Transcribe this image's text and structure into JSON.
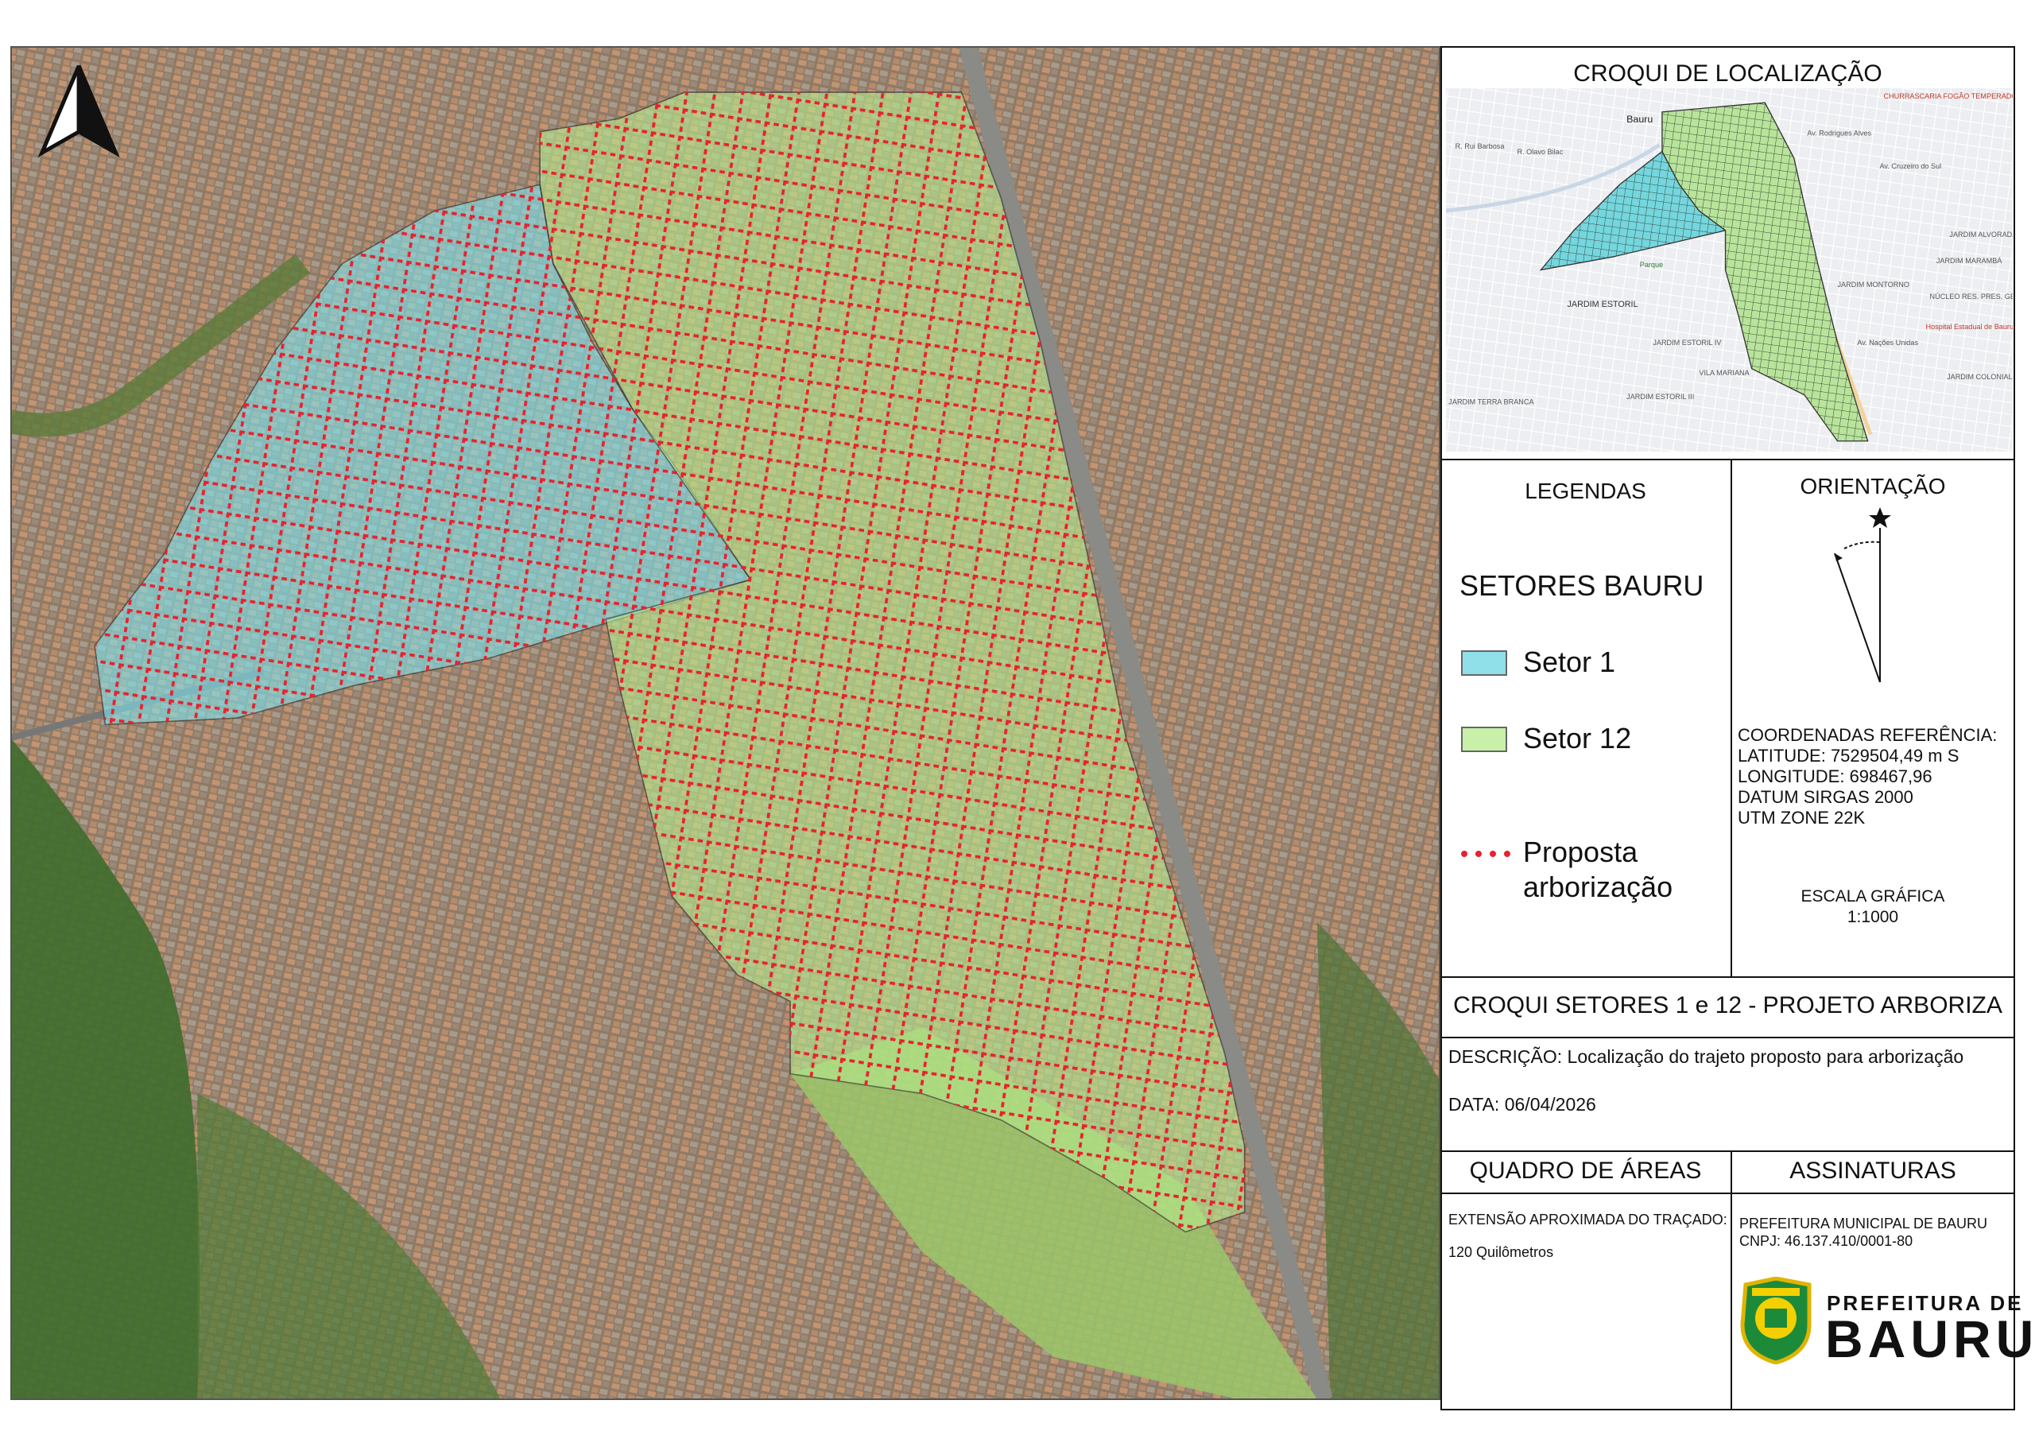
{
  "inset": {
    "title": "CROQUI DE LOCALIZAÇÃO",
    "labels": [
      "Bauru",
      "R. Rui Barbosa",
      "R. Olavo Bilac",
      "Av. Rodrigues Alves",
      "Av. Cruzeiro do Sul",
      "CHURRASCARIA FOGÃO TEMPERADO",
      "Parque",
      "JARDIM ESTORIL",
      "JARDIM MONTORNO",
      "JARDIM MARAMBÁ",
      "JARDIM ALVORADA",
      "NÚCLEO RES. PRES. GEISEL",
      "Hospital Estadual de Bauru",
      "Av. Nações Unidas",
      "JARDIM ESTORIL IV",
      "VILA MARIANA",
      "JARDIM ESTORIL III",
      "JARDIM TERRA BRANCA",
      "JARDIM COLONIAL"
    ]
  },
  "legend": {
    "title": "LEGENDAS",
    "group": "SETORES BAURU",
    "items": [
      "Setor 1",
      "Setor 12",
      "Proposta arborização"
    ]
  },
  "orientation": {
    "title": "ORIENTAÇÃO",
    "coordinates": [
      "COORDENADAS REFERÊNCIA:",
      "LATITUDE: 7529504,49 m S",
      "LONGITUDE: 698467,96",
      "DATUM SIRGAS 2000",
      "UTM ZONE 22K"
    ],
    "scale_title": "ESCALA GRÁFICA",
    "scale": "1:1000"
  },
  "title": "CROQUI SETORES 1 e 12 - PROJETO ARBORIZA",
  "description": {
    "label": "DESCRIÇÃO:",
    "text": "Localização do trajeto proposto para arborização"
  },
  "date": {
    "label": "DATA:",
    "text": "06/04/2026"
  },
  "areas": {
    "title": "QUADRO DE ÁREAS",
    "label": "EXTENSÃO APROXIMADA DO TRAÇADO:",
    "value": "120 Quilômetros"
  },
  "signatures": {
    "title": "ASSINATURAS",
    "lines": [
      "PREFEITURA MUNICIPAL DE BAURU",
      "CNPJ: 46.137.410/0001-80"
    ],
    "logo_top": "PREFEITURA DE",
    "logo_bottom": "BAURU"
  }
}
